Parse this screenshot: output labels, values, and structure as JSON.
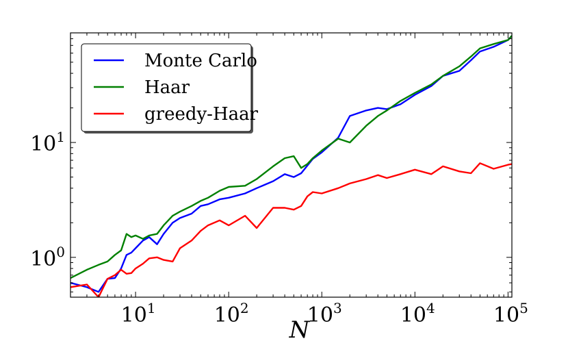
{
  "chart_data": {
    "type": "line",
    "title": "",
    "xlabel": "N",
    "ylabel": "",
    "xscale": "log",
    "yscale": "log",
    "xlim": [
      2,
      110000
    ],
    "ylim": [
      0.45,
      90
    ],
    "x_ticks": [
      {
        "value": 10,
        "base": "10",
        "exp": "1"
      },
      {
        "value": 100,
        "base": "10",
        "exp": "2"
      },
      {
        "value": 1000,
        "base": "10",
        "exp": "3"
      },
      {
        "value": 10000,
        "base": "10",
        "exp": "4"
      },
      {
        "value": 100000,
        "base": "10",
        "exp": "5"
      }
    ],
    "y_ticks": [
      {
        "value": 1,
        "base": "10",
        "exp": "0"
      },
      {
        "value": 10,
        "base": "10",
        "exp": "1"
      }
    ],
    "grid": false,
    "legend_position": "top-left",
    "series": [
      {
        "name": "Monte Carlo",
        "color": "#0000ff",
        "x": [
          2,
          3,
          4,
          5,
          6,
          7,
          8,
          9,
          10,
          12,
          14,
          17,
          20,
          25,
          30,
          40,
          50,
          60,
          80,
          100,
          150,
          200,
          300,
          400,
          500,
          600,
          700,
          800,
          1000,
          1500,
          2000,
          3000,
          4000,
          5000,
          7000,
          10000,
          15000,
          20000,
          30000,
          40000,
          50000,
          70000,
          100000,
          110000
        ],
        "y": [
          0.6,
          0.55,
          0.5,
          0.65,
          0.66,
          0.8,
          1.05,
          1.1,
          1.2,
          1.4,
          1.5,
          1.3,
          1.6,
          2.0,
          2.2,
          2.4,
          2.8,
          2.9,
          3.2,
          3.3,
          3.6,
          4.0,
          4.6,
          5.3,
          5.0,
          5.4,
          6.3,
          7.2,
          8.2,
          11.0,
          17.0,
          19.0,
          20.0,
          19.5,
          21.5,
          26.0,
          31.0,
          38.0,
          42.0,
          52.0,
          62.0,
          68.0,
          78.0,
          85.0
        ]
      },
      {
        "name": "Haar",
        "color": "#008000",
        "x": [
          2,
          3,
          4,
          5,
          6,
          7,
          8,
          9,
          10,
          12,
          14,
          17,
          20,
          25,
          30,
          40,
          50,
          60,
          80,
          100,
          150,
          200,
          300,
          400,
          500,
          600,
          700,
          800,
          1000,
          1500,
          2000,
          3000,
          4000,
          5000,
          7000,
          10000,
          15000,
          20000,
          30000,
          40000,
          50000,
          70000,
          100000,
          110000
        ],
        "y": [
          0.66,
          0.78,
          0.86,
          0.92,
          1.05,
          1.15,
          1.6,
          1.5,
          1.55,
          1.45,
          1.55,
          1.6,
          1.9,
          2.3,
          2.5,
          2.8,
          3.1,
          3.3,
          3.8,
          4.1,
          4.2,
          4.8,
          6.2,
          7.3,
          7.6,
          6.0,
          6.5,
          7.3,
          8.5,
          10.8,
          10.0,
          14.0,
          17.0,
          19.0,
          23.0,
          27.0,
          32.0,
          38.0,
          46.0,
          56.0,
          66.0,
          72.0,
          78.0,
          85.0
        ]
      },
      {
        "name": "greedy-Haar",
        "color": "#ff0000",
        "x": [
          2,
          3,
          4,
          5,
          6,
          7,
          8,
          9,
          10,
          12,
          14,
          17,
          20,
          25,
          30,
          40,
          50,
          60,
          80,
          100,
          150,
          200,
          300,
          400,
          500,
          600,
          700,
          800,
          1000,
          1500,
          2000,
          3000,
          4000,
          5000,
          7000,
          10000,
          15000,
          20000,
          30000,
          40000,
          50000,
          70000,
          100000,
          110000
        ],
        "y": [
          0.55,
          0.58,
          0.45,
          0.65,
          0.7,
          0.78,
          0.72,
          0.73,
          0.8,
          0.88,
          0.98,
          1.0,
          0.95,
          0.92,
          1.2,
          1.4,
          1.7,
          1.9,
          2.1,
          1.9,
          2.3,
          1.8,
          2.7,
          2.7,
          2.6,
          2.8,
          3.4,
          3.7,
          3.6,
          4.0,
          4.4,
          4.8,
          5.2,
          4.9,
          5.3,
          5.8,
          5.3,
          6.2,
          5.6,
          5.4,
          6.6,
          5.9,
          6.4,
          6.5
        ]
      }
    ]
  }
}
